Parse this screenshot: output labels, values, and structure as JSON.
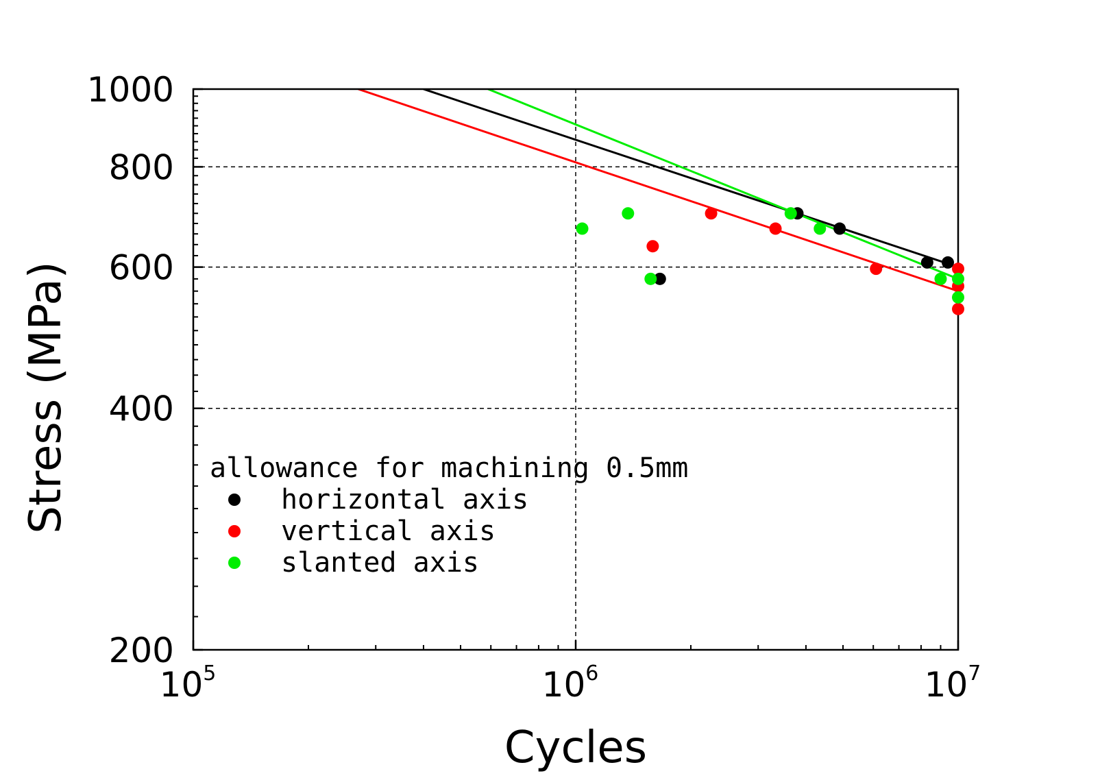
{
  "chart_data": {
    "type": "scatter",
    "xscale": "log",
    "yscale": "log",
    "xlim": [
      100000,
      10000000
    ],
    "ylim": [
      200,
      1000
    ],
    "xlabel": "Cycles",
    "ylabel": "Stress (MPa)",
    "x_ticks": [
      {
        "base": "10",
        "exp": "5"
      },
      {
        "base": "10",
        "exp": "6"
      },
      {
        "base": "10",
        "exp": "7"
      }
    ],
    "y_ticks": [
      "200",
      "400",
      "600",
      "800",
      "1000"
    ],
    "grid": true,
    "legend_title": "allowance for machining 0.5mm",
    "series": [
      {
        "name": "horizontal axis",
        "color": "#000000",
        "points": [
          [
            1660000,
            580
          ],
          [
            3800000,
            700
          ],
          [
            4900000,
            670
          ],
          [
            8300000,
            608
          ],
          [
            9400000,
            608
          ]
        ],
        "fit_line": [
          [
            400000,
            1000
          ],
          [
            10000000,
            600
          ]
        ]
      },
      {
        "name": "vertical axis",
        "color": "#ff0000",
        "points": [
          [
            1590000,
            637
          ],
          [
            2260000,
            700
          ],
          [
            3330000,
            670
          ],
          [
            6100000,
            597
          ],
          [
            10000000,
            597
          ],
          [
            10000000,
            568
          ],
          [
            10000000,
            532
          ]
        ],
        "fit_line": [
          [
            270000,
            1000
          ],
          [
            10000000,
            560
          ]
        ]
      },
      {
        "name": "slanted axis",
        "color": "#00ee00",
        "points": [
          [
            1040000,
            670
          ],
          [
            1370000,
            700
          ],
          [
            1570000,
            580
          ],
          [
            3650000,
            700
          ],
          [
            4350000,
            670
          ],
          [
            9000000,
            580
          ],
          [
            10000000,
            580
          ],
          [
            10000000,
            550
          ]
        ],
        "fit_line": [
          [
            590000,
            1000
          ],
          [
            10000000,
            580
          ]
        ]
      }
    ]
  }
}
